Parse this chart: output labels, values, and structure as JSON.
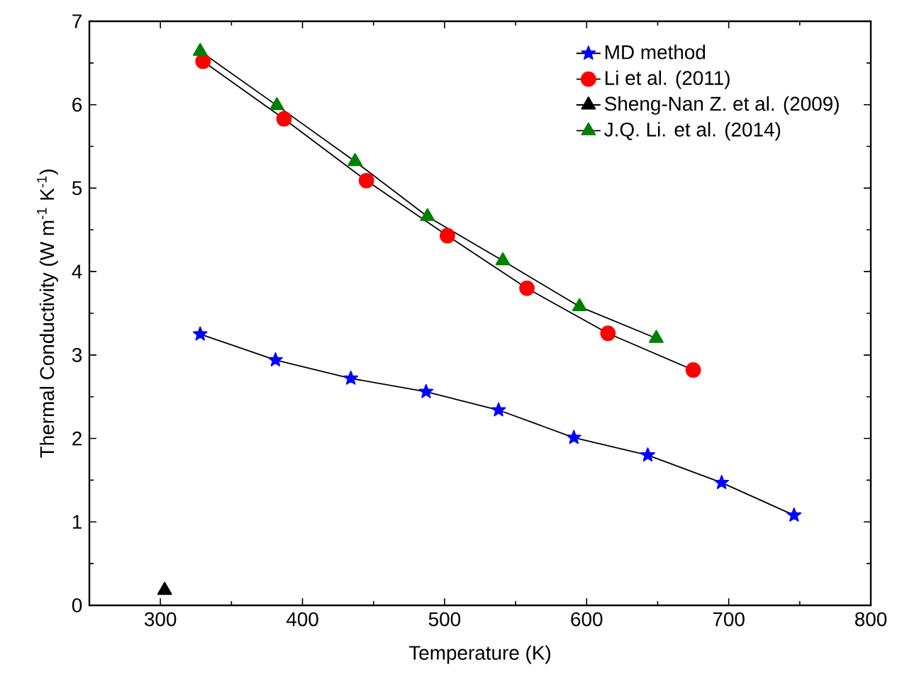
{
  "chart_data": {
    "type": "line",
    "xlabel": "Temperature (K)",
    "ylabel": "Thermal Conductivity (W m$^{-1}$ K$^{-1}$)",
    "xlim": [
      250,
      800
    ],
    "ylim": [
      0,
      7
    ],
    "xticks": [
      300,
      400,
      500,
      600,
      700,
      800
    ],
    "yticks": [
      0,
      1,
      2,
      3,
      4,
      5,
      6,
      7
    ],
    "legend": "top right",
    "grid": false,
    "series": [
      {
        "name": "MD method",
        "color": "#0000ff",
        "marker": "star",
        "x": [
          328,
          381,
          434,
          487,
          538,
          591,
          643,
          695,
          746
        ],
        "values": [
          3.25,
          2.94,
          2.72,
          2.56,
          2.34,
          2.01,
          1.8,
          1.47,
          1.08
        ]
      },
      {
        "name": "Li et al. (2011)",
        "color": "#ff0000",
        "marker": "circle",
        "x": [
          330,
          387,
          445,
          502,
          558,
          615,
          675
        ],
        "values": [
          6.52,
          5.83,
          5.09,
          4.43,
          3.8,
          3.26,
          2.82
        ]
      },
      {
        "name": "Sheng-Nan Z. et al. (2009)",
        "color": "#000000",
        "marker": "triangle",
        "x": [
          303
        ],
        "values": [
          0.18
        ]
      },
      {
        "name": "J.Q. Li. et al. (2014)",
        "color": "#008000",
        "marker": "triangle",
        "x": [
          328,
          382,
          437,
          488,
          541,
          595,
          649
        ],
        "values": [
          6.64,
          5.99,
          5.32,
          4.66,
          4.13,
          3.58,
          3.2
        ]
      }
    ]
  }
}
